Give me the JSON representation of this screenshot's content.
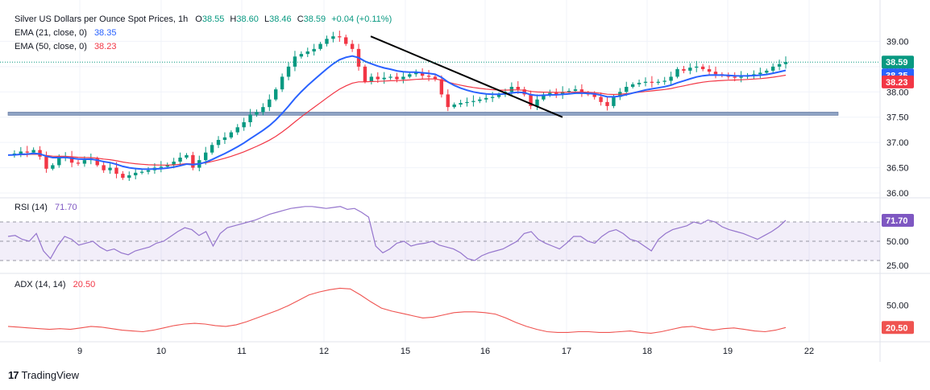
{
  "header": {
    "symbol_title": "Silver US Dollars per Ounce Spot Prices, 1h",
    "ohlc": [
      {
        "key": "O",
        "value": "38.55"
      },
      {
        "key": "H",
        "value": "38.60"
      },
      {
        "key": "L",
        "value": "38.46"
      },
      {
        "key": "C",
        "value": "38.59"
      }
    ],
    "change": "+0.04 (+0.11%)"
  },
  "indicators": {
    "ema21": {
      "label": "EMA (21, close, 0)",
      "value": "38.35",
      "color": "#2962ff"
    },
    "ema50": {
      "label": "EMA (50, close, 0)",
      "value": "38.23",
      "color": "#f23645"
    },
    "rsi": {
      "label": "RSI (14)",
      "value": "71.70",
      "color": "#7e57c2"
    },
    "adx": {
      "label": "ADX (14, 14)",
      "value": "20.50",
      "color": "#f23645"
    }
  },
  "colors": {
    "up": "#089981",
    "down": "#f23645",
    "ema21": "#2962ff",
    "ema50": "#f23645",
    "rsi": "#9575cd",
    "adx": "#ef5350",
    "support": "#8ea3c4",
    "trendline": "#000000",
    "grid": "#f0f3fa",
    "axis_text": "#131722"
  },
  "brand": {
    "name": "TradingView"
  },
  "chart_data": [
    {
      "type": "candlestick",
      "title": "Silver US Dollars per Ounce Spot Prices, 1h",
      "x_tick_labels": [
        "9",
        "10",
        "11",
        "12",
        "15",
        "16",
        "17",
        "18",
        "19",
        "22"
      ],
      "y_tick_labels": [
        "39.00",
        "38.50",
        "38.00",
        "37.50",
        "37.00",
        "36.50",
        "36.00"
      ],
      "ylim": [
        36.0,
        39.15
      ],
      "current_price_label": "38.59",
      "support_zone": [
        37.54,
        37.6
      ],
      "trendline": {
        "from_value": 39.1,
        "to_value": 37.5
      },
      "series": [
        {
          "name": "EMA (21, close, 0)",
          "last": 38.35
        },
        {
          "name": "EMA (50, close, 0)",
          "last": 38.23
        }
      ],
      "price_path": [
        36.75,
        36.78,
        36.82,
        36.8,
        36.85,
        36.72,
        36.48,
        36.55,
        36.7,
        36.72,
        36.6,
        36.58,
        36.65,
        36.68,
        36.55,
        36.45,
        36.5,
        36.38,
        36.3,
        36.35,
        36.4,
        36.42,
        36.45,
        36.5,
        36.52,
        36.55,
        36.62,
        36.7,
        36.75,
        36.5,
        36.65,
        36.8,
        36.95,
        37.05,
        37.1,
        37.2,
        37.3,
        37.4,
        37.55,
        37.6,
        37.7,
        37.85,
        38.05,
        38.3,
        38.5,
        38.7,
        38.75,
        38.8,
        38.85,
        38.95,
        39.05,
        39.1,
        39.08,
        38.95,
        38.85,
        38.5,
        38.2,
        38.3,
        38.25,
        38.28,
        38.3,
        38.25,
        38.3,
        38.35,
        38.38,
        38.32,
        38.3,
        38.25,
        37.95,
        37.7,
        37.75,
        37.78,
        37.8,
        37.82,
        37.85,
        37.88,
        37.9,
        37.95,
        38.0,
        38.1,
        38.05,
        37.95,
        37.72,
        37.85,
        37.95,
        37.98,
        37.95,
        38.0,
        38.02,
        38.05,
        37.98,
        37.95,
        37.9,
        37.8,
        37.72,
        37.9,
        38.0,
        38.1,
        38.15,
        38.18,
        38.2,
        38.18,
        38.2,
        38.22,
        38.3,
        38.45,
        38.42,
        38.48,
        38.5,
        38.45,
        38.4,
        38.35,
        38.32,
        38.3,
        38.28,
        38.3,
        38.32,
        38.35,
        38.38,
        38.42,
        38.5,
        38.55,
        38.59
      ]
    },
    {
      "type": "line",
      "title": "RSI (14)",
      "y_tick_labels": [
        "50.00",
        "25.00"
      ],
      "ylim": [
        20,
        90
      ],
      "bands": [
        30,
        50,
        70
      ],
      "series": [
        {
          "name": "RSI (14)",
          "last": 71.7
        }
      ],
      "values": [
        55,
        56,
        52,
        50,
        58,
        40,
        32,
        45,
        55,
        52,
        46,
        48,
        50,
        44,
        40,
        42,
        38,
        36,
        40,
        42,
        44,
        48,
        50,
        55,
        60,
        64,
        62,
        56,
        60,
        45,
        58,
        64,
        66,
        68,
        70,
        72,
        75,
        78,
        80,
        82,
        84,
        85,
        86,
        86,
        85,
        84,
        85,
        86,
        83,
        84,
        80,
        75,
        45,
        38,
        42,
        48,
        50,
        45,
        47,
        48,
        50,
        46,
        44,
        42,
        38,
        32,
        30,
        35,
        38,
        40,
        42,
        46,
        50,
        58,
        60,
        52,
        48,
        45,
        42,
        48,
        55,
        55,
        50,
        48,
        55,
        60,
        62,
        58,
        52,
        50,
        45,
        40,
        52,
        58,
        62,
        64,
        66,
        70,
        68,
        72,
        70,
        65,
        62,
        60,
        58,
        55,
        52,
        56,
        60,
        65,
        71.7
      ]
    },
    {
      "type": "line",
      "title": "ADX (14, 14)",
      "y_tick_labels": [
        "50.00"
      ],
      "ylim": [
        5,
        85
      ],
      "series": [
        {
          "name": "ADX (14, 14)",
          "last": 20.5
        }
      ],
      "values": [
        22,
        21,
        20,
        19,
        18,
        19,
        18,
        20,
        22,
        21,
        19,
        17,
        16,
        15,
        17,
        20,
        23,
        25,
        26,
        25,
        23,
        22,
        24,
        28,
        33,
        38,
        43,
        49,
        56,
        63,
        67,
        70,
        72,
        71,
        63,
        54,
        46,
        42,
        39,
        36,
        33,
        34,
        37,
        40,
        41,
        41,
        40,
        38,
        33,
        27,
        22,
        18,
        15,
        14,
        14,
        15,
        15,
        14,
        14,
        15,
        16,
        14,
        13,
        15,
        18,
        21,
        22,
        19,
        17,
        19,
        20,
        18,
        16,
        15,
        17,
        20.5
      ]
    }
  ]
}
